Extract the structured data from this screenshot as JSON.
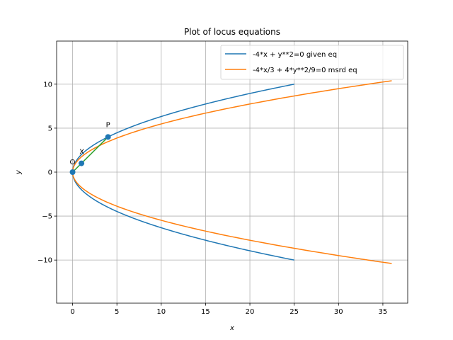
{
  "chart_data": {
    "type": "line",
    "title": "Plot of locus equations",
    "xlabel": "x",
    "ylabel": "y",
    "xlim": [
      -1.8,
      37.8
    ],
    "ylim": [
      -14.9,
      14.9
    ],
    "xticks": [
      0,
      5,
      10,
      15,
      20,
      25,
      30,
      35
    ],
    "yticks": [
      -10,
      -5,
      0,
      5,
      10
    ],
    "grid": true,
    "legend_position": "top-right",
    "series": [
      {
        "name": "-4*x + y**2=0 given eq",
        "color": "#1f77b4",
        "equation": "y^2 = 4x",
        "x_range": [
          0,
          25
        ]
      },
      {
        "name": "-4*x/3 + 4*y**2/9=0 msrd eq",
        "color": "#ff7f0e",
        "equation": "y^2 = 3x",
        "x_range": [
          0,
          36
        ]
      }
    ],
    "segments": {
      "color": "#2ca02c",
      "points": [
        {
          "label": "O",
          "x": 0,
          "y": 0
        },
        {
          "label": "X",
          "x": 1,
          "y": 1
        },
        {
          "label": "P",
          "x": 4,
          "y": 4
        }
      ]
    }
  }
}
